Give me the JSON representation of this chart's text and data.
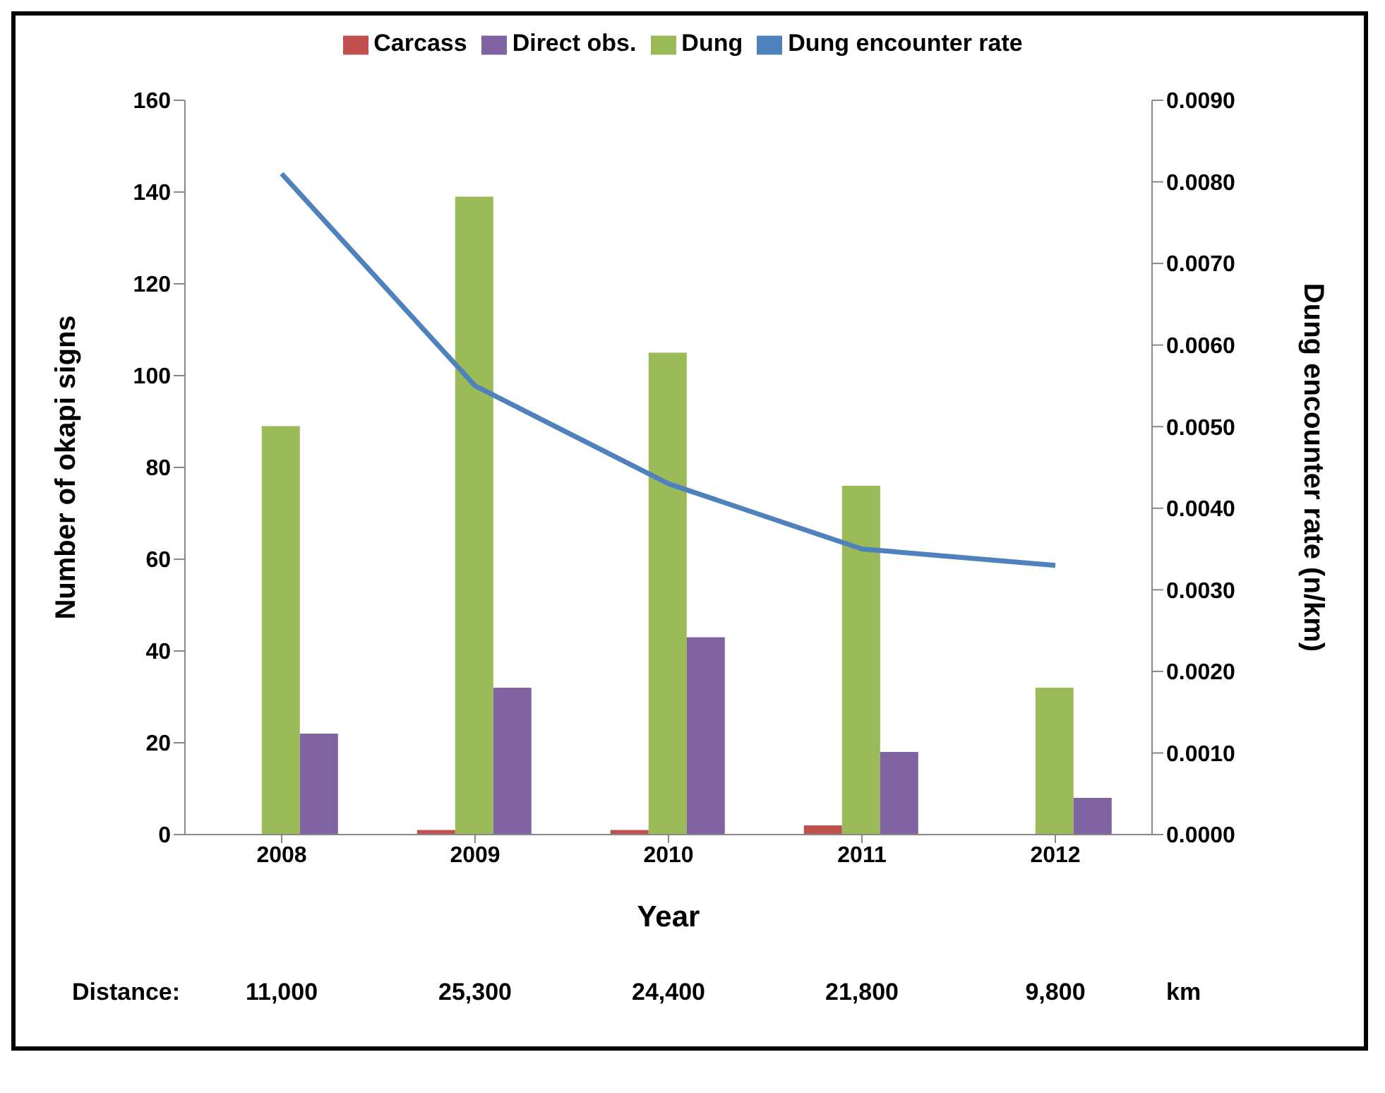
{
  "chart_data": {
    "type": "bar",
    "xlabel": "Year",
    "ylabel": "Number of okapi signs",
    "y2label": "Dung encounter rate (n/km)",
    "categories": [
      "2008",
      "2009",
      "2010",
      "2011",
      "2012"
    ],
    "series": [
      {
        "name": "Carcass",
        "color": "#c0504d",
        "values": [
          0,
          1,
          1,
          2,
          0
        ]
      },
      {
        "name": "Dung",
        "color": "#9bbb59",
        "values": [
          89,
          139,
          105,
          76,
          32
        ]
      },
      {
        "name": "Direct obs.",
        "color": "#8064a2",
        "values": [
          22,
          32,
          43,
          18,
          8
        ]
      },
      {
        "name": "Dung encounter rate",
        "type": "line",
        "axis": "y2",
        "color": "#4f81bd",
        "values": [
          0.0081,
          0.0055,
          0.0043,
          0.0035,
          0.0033
        ]
      }
    ],
    "ylim": [
      0,
      160
    ],
    "yticks": [
      0,
      20,
      40,
      60,
      80,
      100,
      120,
      140,
      160
    ],
    "y2lim": [
      0,
      0.009
    ],
    "y2ticks": [
      {
        "value": 0,
        "label": "0.0000"
      },
      {
        "value": 0.001,
        "label": "0.0010"
      },
      {
        "value": 0.002,
        "label": "0.0020"
      },
      {
        "value": 0.003,
        "label": "0.0030"
      },
      {
        "value": 0.004,
        "label": "0.0040"
      },
      {
        "value": 0.005,
        "label": "0.0050"
      },
      {
        "value": 0.006,
        "label": "0.0060"
      },
      {
        "value": 0.007,
        "label": "0.0070"
      },
      {
        "value": 0.008,
        "label": "0.0080"
      },
      {
        "value": 0.009,
        "label": "0.0090"
      }
    ],
    "grid": false,
    "legend": "top",
    "marker": "none",
    "annotations": [
      "Distance:",
      "11,000",
      "25,300",
      "24,400",
      "21,800",
      "9,800",
      "km"
    ]
  }
}
